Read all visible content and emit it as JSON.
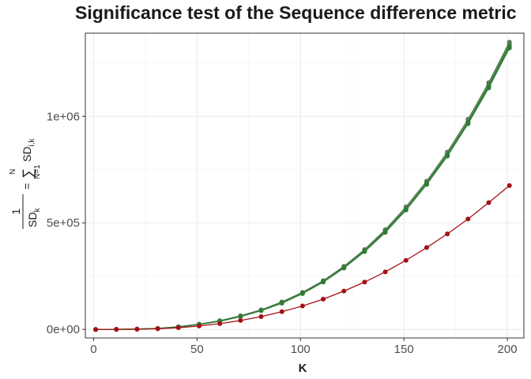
{
  "chart_data": {
    "type": "line",
    "title": "Significance test of the Sequence difference metric",
    "xlabel": "K",
    "ylabel": {
      "frac_num": "1",
      "frac_den": "SD",
      "frac_den_sub": "k",
      "equals": "=",
      "sum_top": "N",
      "sum_symbol": "∑",
      "sum_bottom": "N=1",
      "term": "SD",
      "term_sub": "i,k"
    },
    "xlim": [
      -4,
      208
    ],
    "ylim": [
      -40000,
      1390000
    ],
    "xticks": [
      0,
      50,
      100,
      150,
      200
    ],
    "xtick_labels": [
      "0",
      "50",
      "100",
      "150",
      "200"
    ],
    "yticks": [
      0,
      500000,
      1000000
    ],
    "ytick_labels": [
      "0e+00",
      "5e+05",
      "1e+06"
    ],
    "grid": true,
    "x": [
      1,
      11,
      21,
      31,
      41,
      51,
      61,
      71,
      81,
      91,
      101,
      111,
      121,
      131,
      141,
      151,
      161,
      171,
      181,
      191,
      201
    ],
    "series": [
      {
        "color": "#a50f15",
        "values": [
          0,
          200,
          800,
          3000,
          8000,
          16000,
          27000,
          42000,
          60000,
          83000,
          110000,
          142000,
          180000,
          222000,
          270000,
          324000,
          384000,
          448000,
          518000,
          595000,
          675000
        ]
      },
      {
        "color": "#3a7d3a",
        "values": [
          0,
          300,
          1400,
          4500,
          11500,
          23000,
          38000,
          60000,
          88000,
          123000,
          168000,
          222000,
          288000,
          365000,
          455000,
          560000,
          680000,
          813000,
          965000,
          1133000,
          1320000
        ]
      },
      {
        "color": "#3f8a3f",
        "values": [
          0,
          300,
          1500,
          4700,
          12000,
          24000,
          40000,
          62000,
          90000,
          126000,
          171000,
          226000,
          292000,
          370000,
          462000,
          567000,
          688000,
          823000,
          976000,
          1148000,
          1338000
        ]
      },
      {
        "color": "#5a7a5a",
        "values": [
          0,
          300,
          1600,
          4900,
          12500,
          25000,
          41000,
          64000,
          92000,
          129000,
          174000,
          229000,
          296000,
          375000,
          468000,
          575000,
          696000,
          832000,
          986000,
          1158000,
          1348000
        ]
      },
      {
        "color": "#2e7d32",
        "values": [
          0,
          300,
          1450,
          4600,
          11800,
          23500,
          39000,
          61000,
          89000,
          125000,
          170000,
          224000,
          290000,
          368000,
          459000,
          563000,
          684000,
          818000,
          970000,
          1140000,
          1328000
        ]
      }
    ]
  }
}
